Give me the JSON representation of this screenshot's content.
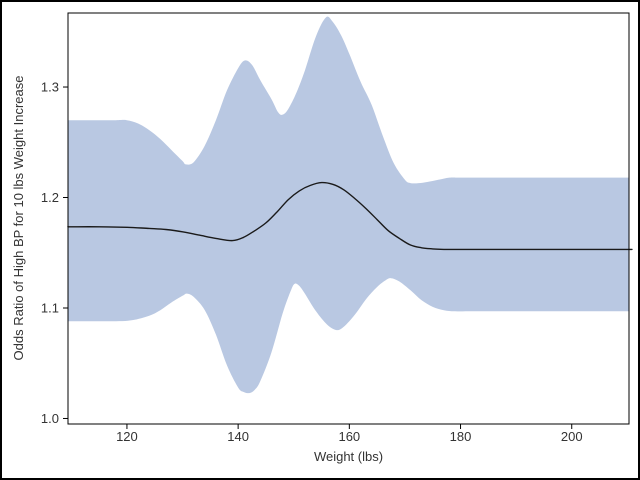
{
  "figure": {
    "background_color": "#ffffff",
    "border_color": "#000000",
    "frame_color": "#000000",
    "text_color": "#333333"
  },
  "chart_data": {
    "type": "line",
    "title": "",
    "xlabel": "Weight (lbs)",
    "ylabel": "Odds Ratio of High BP for 10 lbs Weight Increase",
    "xlim": [
      109.4,
      210.3
    ],
    "ylim": [
      0.995,
      1.367
    ],
    "x_ticks": [
      120,
      140,
      160,
      180,
      200
    ],
    "y_ticks": [
      1.0,
      1.1,
      1.2,
      1.3
    ],
    "grid": false,
    "legend": "none",
    "band": {
      "name": "confidence-band",
      "color": "#b9c8e2",
      "upper": {
        "x": [
          110,
          114,
          118,
          120,
          122,
          124,
          126,
          128,
          130,
          130.6,
          132,
          134,
          136,
          138,
          140,
          141.2,
          142.5,
          144,
          146,
          147.2,
          148,
          149,
          150.5,
          152,
          154,
          155.8,
          157,
          158.5,
          160,
          162,
          164,
          166,
          168,
          170,
          171,
          172.5,
          174,
          176,
          178,
          180,
          185,
          190,
          200,
          210
        ],
        "y": [
          1.27,
          1.27,
          1.27,
          1.27,
          1.267,
          1.261,
          1.253,
          1.243,
          1.233,
          1.23,
          1.232,
          1.247,
          1.27,
          1.297,
          1.317,
          1.324,
          1.32,
          1.306,
          1.289,
          1.277,
          1.275,
          1.28,
          1.295,
          1.315,
          1.346,
          1.363,
          1.359,
          1.347,
          1.33,
          1.305,
          1.284,
          1.256,
          1.231,
          1.216,
          1.213,
          1.213,
          1.214,
          1.216,
          1.218,
          1.218,
          1.218,
          1.218,
          1.218,
          1.218
        ]
      },
      "lower": {
        "x": [
          110,
          114,
          118,
          121,
          124,
          126,
          128,
          130,
          130.8,
          132,
          134,
          136,
          138,
          140,
          141,
          142,
          143,
          144,
          146,
          148,
          149.5,
          150.2,
          151,
          152,
          154,
          156,
          157.7,
          159,
          161,
          163,
          165,
          166.5,
          167.5,
          169,
          171,
          173,
          175,
          177,
          179,
          182,
          186,
          190,
          200,
          210
        ],
        "y": [
          1.088,
          1.088,
          1.088,
          1.089,
          1.093,
          1.098,
          1.105,
          1.111,
          1.113,
          1.11,
          1.098,
          1.076,
          1.048,
          1.028,
          1.024,
          1.023,
          1.026,
          1.034,
          1.06,
          1.095,
          1.116,
          1.122,
          1.12,
          1.113,
          1.097,
          1.085,
          1.08,
          1.083,
          1.094,
          1.108,
          1.119,
          1.125,
          1.127,
          1.124,
          1.116,
          1.107,
          1.101,
          1.098,
          1.097,
          1.097,
          1.097,
          1.097,
          1.097,
          1.097
        ]
      }
    },
    "series": [
      {
        "name": "odds-ratio-estimate",
        "color": "#1a1a1a",
        "x": [
          110,
          115,
          120,
          124,
          127,
          130,
          133,
          136,
          139,
          141,
          143,
          145,
          147,
          149,
          151,
          153,
          155,
          157,
          159,
          161,
          163,
          165,
          167,
          169,
          171,
          173,
          175,
          177,
          180,
          185,
          190,
          200,
          210
        ],
        "y": [
          1.1735,
          1.1735,
          1.173,
          1.172,
          1.171,
          1.169,
          1.166,
          1.163,
          1.161,
          1.164,
          1.17,
          1.177,
          1.187,
          1.198,
          1.206,
          1.211,
          1.2135,
          1.212,
          1.207,
          1.199,
          1.19,
          1.18,
          1.17,
          1.163,
          1.157,
          1.1545,
          1.1535,
          1.153,
          1.153,
          1.153,
          1.153,
          1.153,
          1.153
        ]
      }
    ]
  }
}
